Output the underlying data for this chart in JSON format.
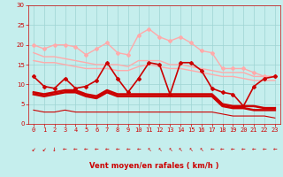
{
  "x": [
    0,
    1,
    2,
    3,
    4,
    5,
    6,
    7,
    8,
    9,
    10,
    11,
    12,
    13,
    14,
    15,
    16,
    17,
    18,
    19,
    20,
    21,
    22,
    23
  ],
  "xlabel": "Vent moyen/en rafales ( km/h )",
  "ylim": [
    0,
    30
  ],
  "yticks": [
    0,
    5,
    10,
    15,
    20,
    25,
    30
  ],
  "bg_color": "#c5eeed",
  "grid_color": "#9dd4d3",
  "series": [
    {
      "values": [
        20,
        19,
        20,
        20,
        19.5,
        17.5,
        19,
        20.5,
        18,
        17.5,
        22.5,
        24,
        22,
        21,
        22,
        20.5,
        18.5,
        18,
        14,
        14,
        14,
        13,
        12,
        12
      ],
      "color": "#ffaaaa",
      "lw": 1.0,
      "marker": "D",
      "ms": 2.0
    },
    {
      "values": [
        18,
        17,
        17,
        16.5,
        16,
        15.5,
        15,
        15,
        15,
        14.5,
        16,
        16,
        16,
        15,
        15,
        14.5,
        14,
        13.5,
        13,
        13,
        13,
        12,
        12,
        12
      ],
      "color": "#ffaaaa",
      "lw": 1.0,
      "marker": null,
      "ms": 0
    },
    {
      "values": [
        16,
        15.5,
        15.5,
        15,
        14.5,
        14,
        14,
        14,
        13.5,
        13.5,
        14.5,
        15,
        14.5,
        14,
        14,
        13.5,
        13,
        12.5,
        12,
        12,
        11.5,
        11,
        11,
        11
      ],
      "color": "#ffaaaa",
      "lw": 1.0,
      "marker": null,
      "ms": 0
    },
    {
      "values": [
        12,
        9.5,
        9,
        11.5,
        9,
        9.5,
        11,
        15.5,
        11.5,
        8,
        11.5,
        15.5,
        15,
        7.5,
        15.5,
        15.5,
        13.5,
        9,
        8,
        7.5,
        4.5,
        9.5,
        11.5,
        12
      ],
      "color": "#cc0000",
      "lw": 1.2,
      "marker": "D",
      "ms": 2.0
    },
    {
      "values": [
        8,
        7.5,
        8,
        8.5,
        8.5,
        7.5,
        7,
        8.5,
        7.5,
        7.5,
        7.5,
        7.5,
        7.5,
        7.5,
        7.5,
        7.5,
        7.5,
        7.5,
        5,
        4.5,
        4.5,
        4.5,
        4,
        4
      ],
      "color": "#cc0000",
      "lw": 1.8,
      "marker": null,
      "ms": 0
    },
    {
      "values": [
        7.5,
        7,
        7.5,
        8,
        8,
        7,
        6.5,
        8,
        7,
        7,
        7,
        7,
        7,
        7,
        7,
        7,
        7,
        7,
        4.5,
        4,
        4,
        3.5,
        3.5,
        3.5
      ],
      "color": "#cc0000",
      "lw": 1.8,
      "marker": null,
      "ms": 0
    },
    {
      "values": [
        3.5,
        3,
        3,
        3.5,
        3,
        3,
        3,
        3,
        3,
        3,
        3,
        3,
        3,
        3,
        3,
        3,
        3,
        3,
        2.5,
        2,
        2,
        2,
        2,
        1.5
      ],
      "color": "#cc0000",
      "lw": 0.8,
      "marker": null,
      "ms": 0
    }
  ],
  "tick_color": "#cc0000",
  "tick_fontsize": 5,
  "xlabel_fontsize": 6
}
